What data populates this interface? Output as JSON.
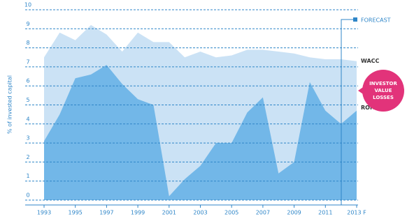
{
  "chart_data": {
    "type": "area",
    "y_label": "% of invested capital",
    "x": [
      1993,
      1994,
      1995,
      1996,
      1997,
      1998,
      1999,
      2000,
      2001,
      2002,
      2003,
      2004,
      2005,
      2006,
      2007,
      2008,
      2009,
      2010,
      2011,
      2012,
      2013
    ],
    "series": [
      {
        "name": "WACC",
        "color": "#cbe2f5",
        "values": [
          7.5,
          8.8,
          8.4,
          9.2,
          8.7,
          7.8,
          8.8,
          8.3,
          8.3,
          7.5,
          7.8,
          7.5,
          7.6,
          7.9,
          7.9,
          7.8,
          7.7,
          7.5,
          7.4,
          7.4,
          7.3
        ]
      },
      {
        "name": "ROIC",
        "color": "#72b7e8",
        "values": [
          3.1,
          4.5,
          6.4,
          6.6,
          7.1,
          6.1,
          5.3,
          5.0,
          0.2,
          1.1,
          1.8,
          3.0,
          3.0,
          4.6,
          5.4,
          1.4,
          2.0,
          6.2,
          4.7,
          4.0,
          4.7
        ]
      }
    ],
    "xlim": [
      1993,
      2013
    ],
    "xticks": [
      1993,
      1995,
      1997,
      1999,
      2001,
      2003,
      2005,
      2007,
      2009,
      2011,
      {
        "value": 2013,
        "label": "2013 F"
      }
    ],
    "ylim": [
      0,
      10
    ],
    "yticks": [
      0,
      1,
      2,
      3,
      4,
      5,
      6,
      7,
      8,
      9,
      10
    ],
    "grid": true,
    "forecast_label": "FORECAST",
    "callout_lines": [
      "INVESTOR",
      "VALUE",
      "LOSSES"
    ],
    "callout_color": "#e2337a"
  }
}
